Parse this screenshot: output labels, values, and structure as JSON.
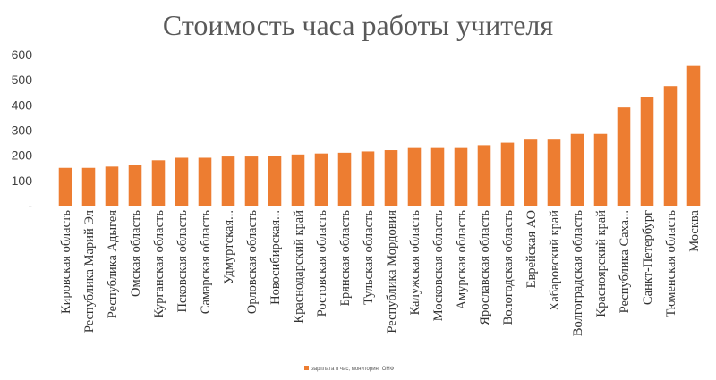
{
  "chart_data": {
    "type": "bar",
    "title": "Стоимость часа работы учителя",
    "xlabel": "",
    "ylabel": "",
    "ylim": [
      0,
      600
    ],
    "yticks": [
      {
        "value": 0,
        "label": "-"
      },
      {
        "value": 100,
        "label": "100"
      },
      {
        "value": 200,
        "label": "200"
      },
      {
        "value": 300,
        "label": "300"
      },
      {
        "value": 400,
        "label": "400"
      },
      {
        "value": 500,
        "label": "500"
      },
      {
        "value": 600,
        "label": "600"
      }
    ],
    "grid": false,
    "legend_position": "bottom",
    "bar_color": "#ED7D31",
    "categories": [
      "Кировская область",
      "Республика Марий Эл",
      "Республика Адыгея",
      "Омская область",
      "Курганская область",
      "Псковская область",
      "Самарская область",
      "Удмуртская...",
      "Орловская область",
      "Новосибирская...",
      "Краснодарский край",
      "Ростовская область",
      "Брянская область",
      "Тульская область",
      "Республика Мордовия",
      "Калужская область",
      "Московская область",
      "Амурская область",
      "Ярославская область",
      "Вологодская область",
      "Еврейская АО",
      "Хабаровский край",
      "Волгоградская область",
      "Красноярский край",
      "Республика Саха...",
      "Санкт-Петербург",
      "Тюменская область",
      "Москва"
    ],
    "series": [
      {
        "name": "зарплата в час, мониторинг ОНФ",
        "values": [
          150,
          150,
          155,
          160,
          180,
          190,
          190,
          195,
          195,
          198,
          203,
          207,
          210,
          215,
          220,
          232,
          232,
          232,
          240,
          250,
          262,
          262,
          285,
          285,
          390,
          430,
          475,
          555
        ]
      }
    ]
  }
}
